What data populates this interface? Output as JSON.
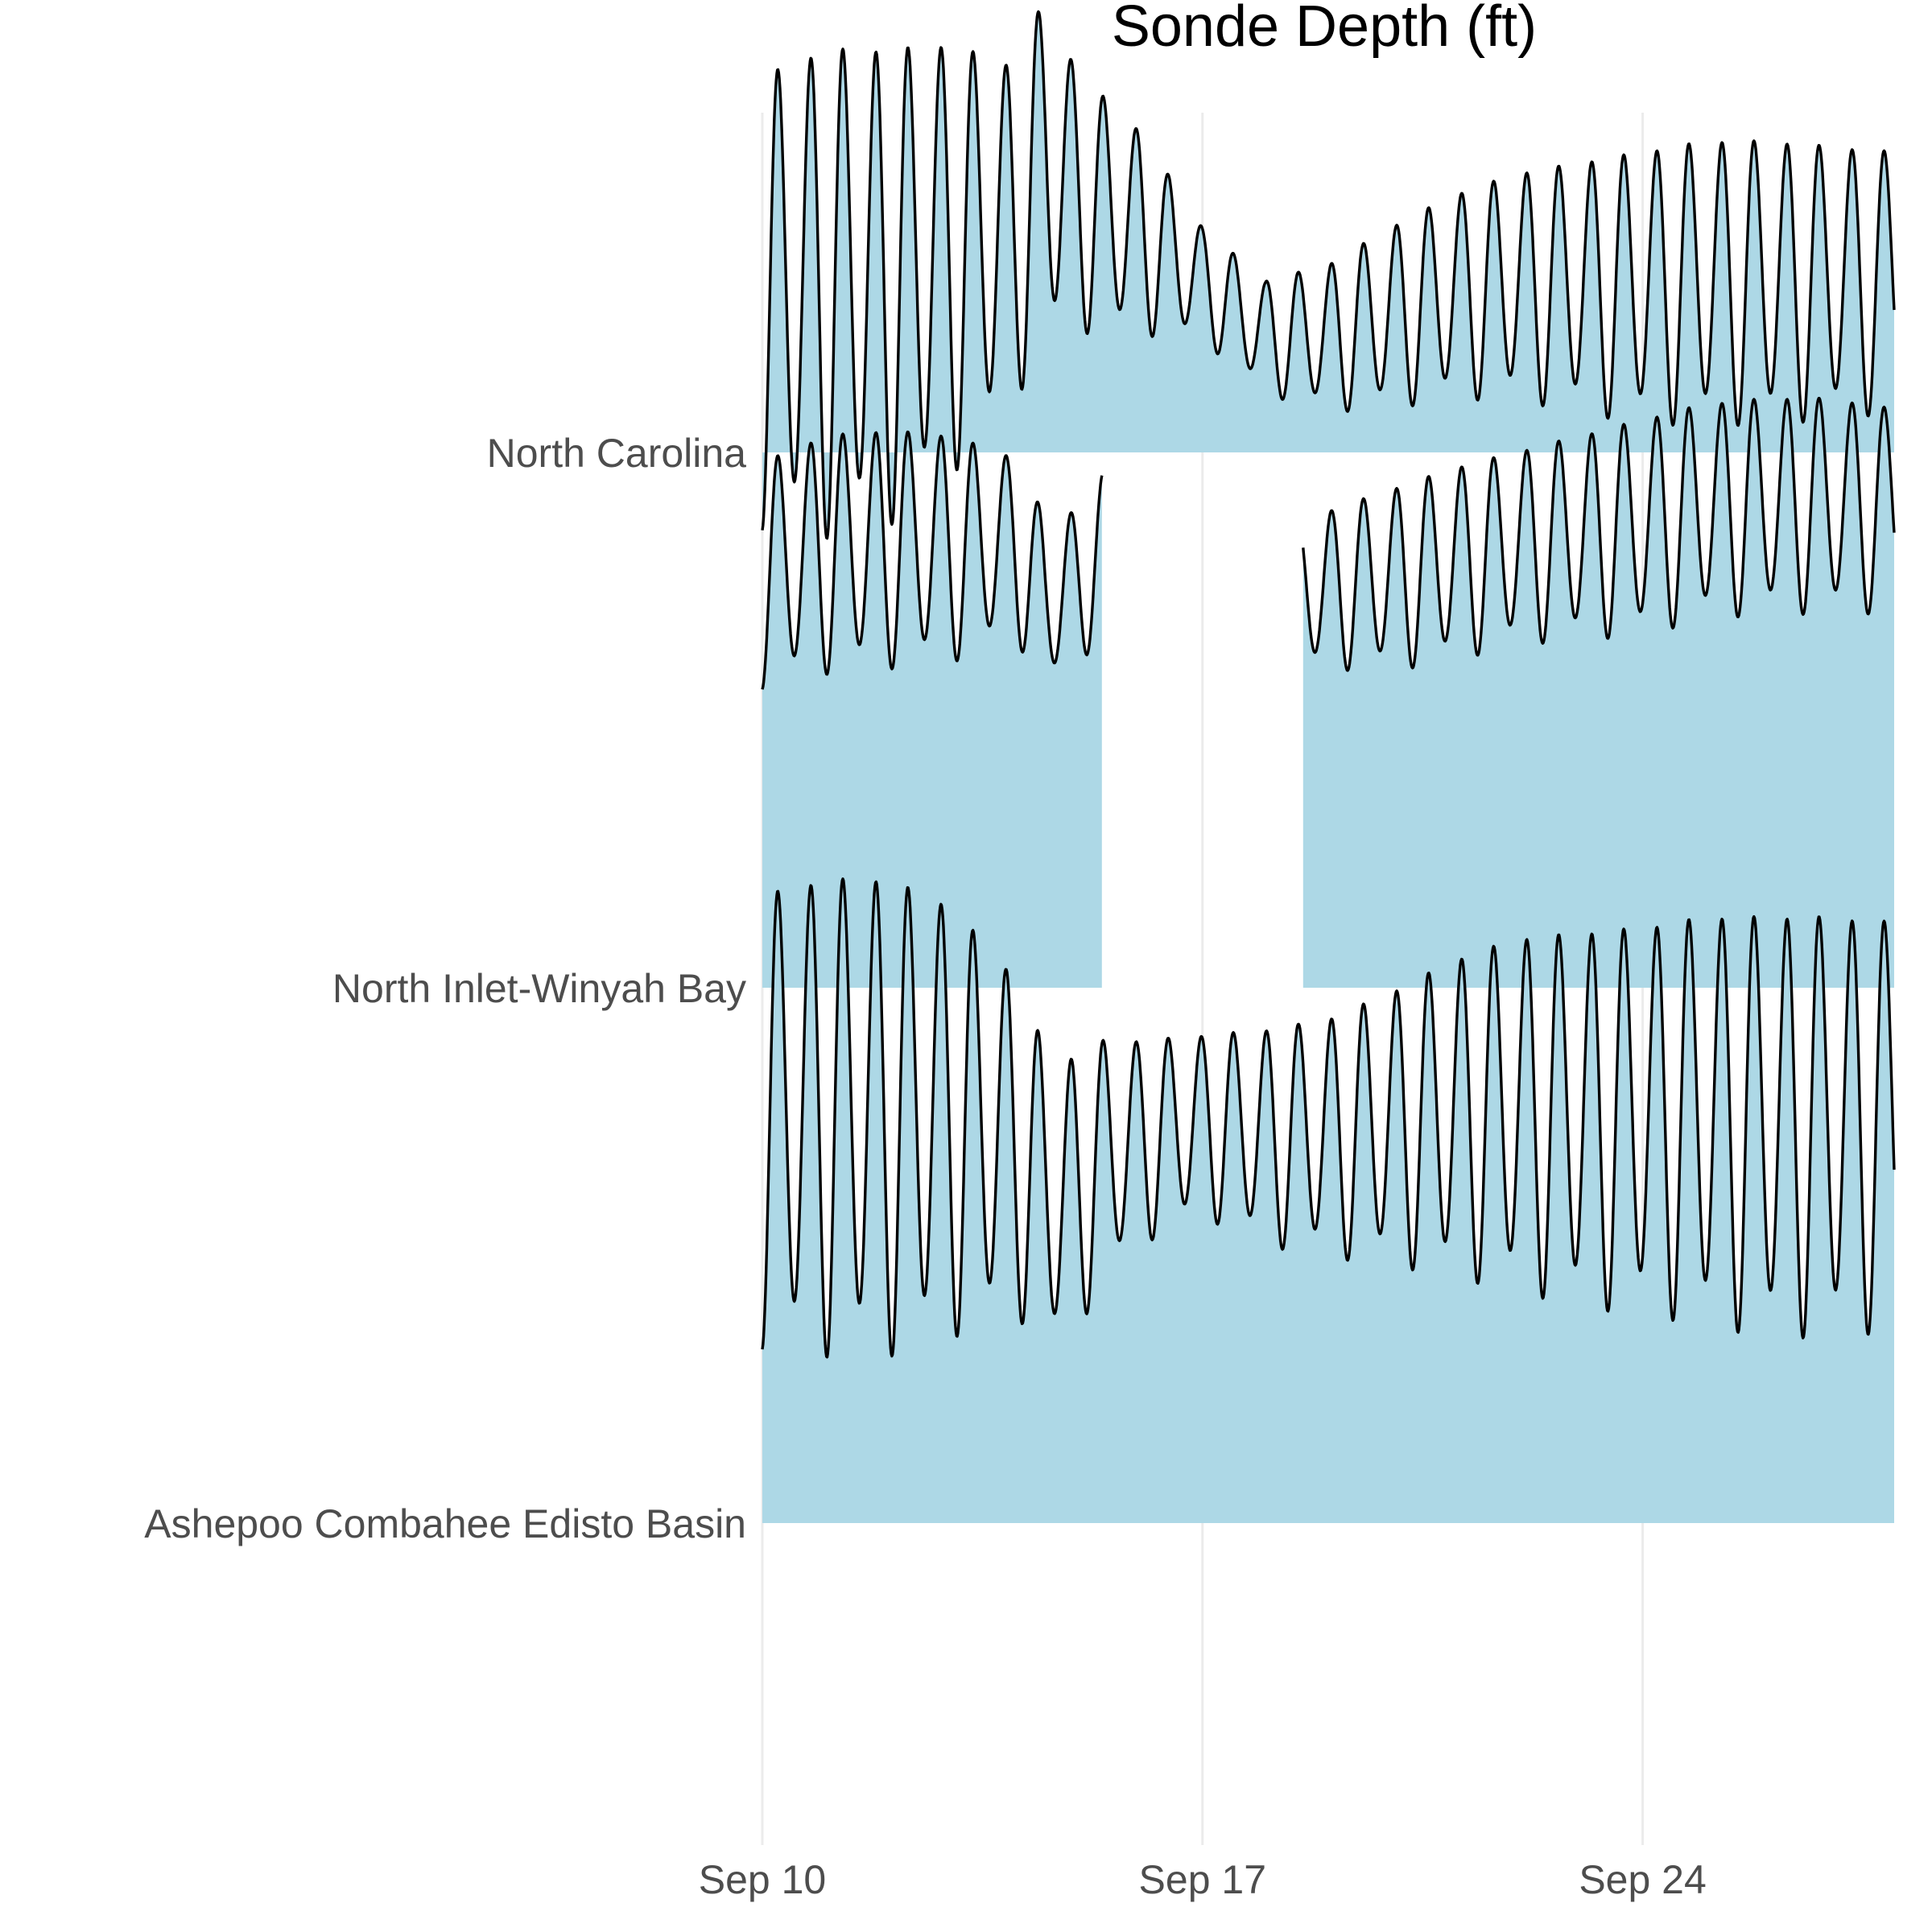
{
  "chart_data": {
    "type": "area",
    "subtype": "ridgeline",
    "title": "Sonde Depth (ft)",
    "xlabel": "",
    "ylabel": "",
    "x_axis": {
      "type": "date",
      "range": [
        "Sep 10",
        "Sep 28"
      ],
      "tick_labels": [
        "Sep 10",
        "Sep 17",
        "Sep 24"
      ]
    },
    "categories": [
      "North Carolina",
      "North Inlet-Winyah Bay",
      "Ashepoo Combahee Edisto Basin"
    ],
    "fill_color": "#add8e6",
    "line_color": "#000000",
    "grid": "vertical major lines only",
    "legend": "none",
    "series": [
      {
        "name": "North Carolina",
        "segments": [
          {
            "x": [
              "Sep 10.0",
              "Sep 11.0",
              "Sep 12.0",
              "Sep 13.0",
              "Sep 14.0",
              "Sep 14.5",
              "Sep 15.0",
              "Sep 16.0",
              "Sep 17.0",
              "Sep 18.0",
              "Sep 19.0",
              "Sep 20.0",
              "Sep 21.0",
              "Sep 22.0",
              "Sep 23.0",
              "Sep 24.0",
              "Sep 25.0",
              "Sep 26.0",
              "Sep 27.0",
              "Sep 28.0"
            ],
            "mean": [
              0.3,
              0.32,
              0.33,
              0.38,
              0.42,
              0.55,
              0.48,
              0.42,
              0.32,
              0.22,
              0.22,
              0.26,
              0.3,
              0.32,
              0.32,
              0.32,
              0.33,
              0.33,
              0.33,
              0.33
            ],
            "tidal_amplitude": [
              0.4,
              0.43,
              0.42,
              0.38,
              0.3,
              0.3,
              0.23,
              0.18,
              0.1,
              0.1,
              0.13,
              0.16,
              0.18,
              0.2,
              0.22,
              0.24,
              0.25,
              0.25,
              0.24,
              0.23
            ]
          }
        ]
      },
      {
        "name": "North Inlet-Winyah Bay",
        "segments": [
          {
            "x": [
              "Sep 10.0",
              "Sep 11.0",
              "Sep 12.0",
              "Sep 13.0",
              "Sep 14.0",
              "Sep 14.5",
              "Sep 15.0",
              "Sep 15.4"
            ],
            "mean": [
              0.78,
              0.82,
              0.83,
              0.83,
              0.83,
              0.73,
              0.75,
              0.82
            ],
            "tidal_amplitude": [
              0.2,
              0.21,
              0.21,
              0.2,
              0.16,
              0.15,
              0.14,
              0.14
            ]
          },
          {
            "x": [
              "Sep 18.6",
              "Sep 19.0",
              "Sep 20.0",
              "Sep 21.0",
              "Sep 22.0",
              "Sep 23.0",
              "Sep 24.0",
              "Sep 25.0",
              "Sep 26.0",
              "Sep 27.0",
              "Sep 28.0"
            ],
            "mean": [
              0.74,
              0.75,
              0.77,
              0.8,
              0.83,
              0.85,
              0.87,
              0.9,
              0.91,
              0.91,
              0.9
            ],
            "tidal_amplitude": [
              0.13,
              0.14,
              0.16,
              0.17,
              0.17,
              0.18,
              0.19,
              0.19,
              0.19,
              0.19,
              0.18
            ]
          }
        ]
      },
      {
        "name": "Ashepoo Combahee Edisto Basin",
        "segments": [
          {
            "x": [
              "Sep 10.0",
              "Sep 11.0",
              "Sep 12.0",
              "Sep 13.0",
              "Sep 14.0",
              "Sep 14.6",
              "Sep 15.0",
              "Sep 15.3",
              "Sep 16.0",
              "Sep 17.0",
              "Sep 18.0",
              "Sep 19.0",
              "Sep 20.0",
              "Sep 21.0",
              "Sep 22.0",
              "Sep 23.0",
              "Sep 24.0",
              "Sep 25.0",
              "Sep 26.0",
              "Sep 27.0",
              "Sep 28.0"
            ],
            "mean": [
              0.77,
              0.78,
              0.78,
              0.77,
              0.72,
              0.61,
              0.62,
              0.68,
              0.72,
              0.75,
              0.73,
              0.73,
              0.75,
              0.77,
              0.78,
              0.77,
              0.77,
              0.77,
              0.76,
              0.76,
              0.76
            ],
            "tidal_amplitude": [
              0.4,
              0.42,
              0.42,
              0.38,
              0.3,
              0.25,
              0.25,
              0.22,
              0.18,
              0.16,
              0.19,
              0.21,
              0.24,
              0.28,
              0.31,
              0.33,
              0.34,
              0.36,
              0.37,
              0.37,
              0.36
            ]
          }
        ]
      }
    ]
  }
}
